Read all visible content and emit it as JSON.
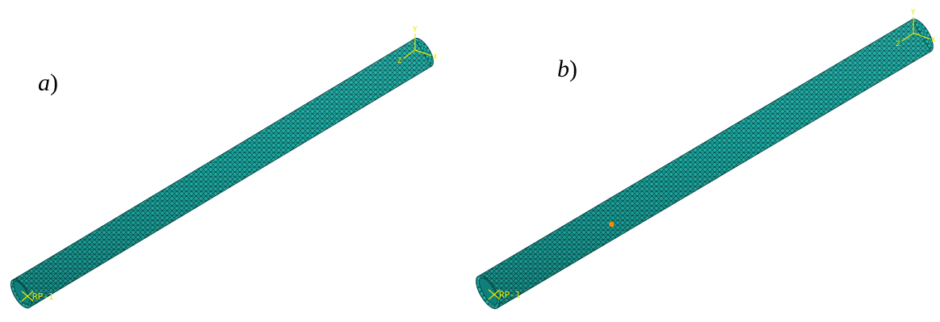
{
  "panels": [
    {
      "id": "a",
      "label_letter": "a",
      "label_suffix": ")",
      "rp_label": "RP-1",
      "triad": {
        "x": "X",
        "y": "Y",
        "z": "Z"
      },
      "has_marker": false
    },
    {
      "id": "b",
      "label_letter": "b",
      "label_suffix": ")",
      "rp_label": "RP-1",
      "triad": {
        "x": "X",
        "y": "Y",
        "z": "Z"
      },
      "has_marker": true
    }
  ],
  "colors": {
    "mesh_fill": "#1fb8b0",
    "mesh_dark": "#0e7f7b",
    "mesh_line": "#083f3c",
    "annotation": "#e6e600",
    "marker": "#ff8a00",
    "background": "#ffffff"
  }
}
